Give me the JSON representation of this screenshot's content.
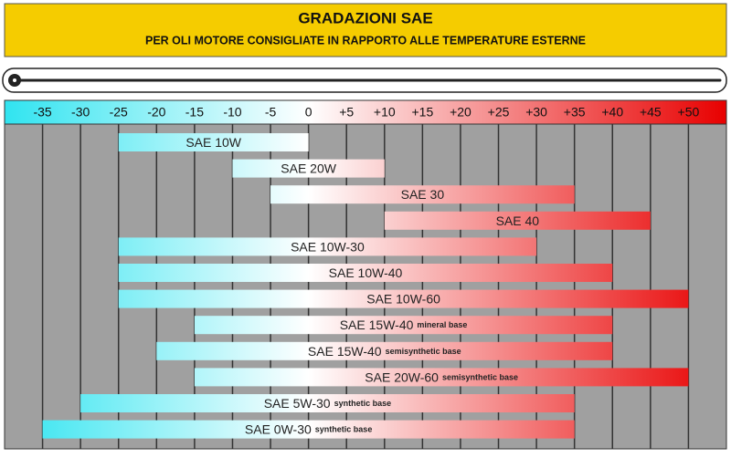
{
  "chart_data": {
    "type": "range_bar",
    "title": "GRADAZIONI SAE",
    "subtitle": "PER OLI MOTORE CONSIGLIATE IN RAPPORTO ALLE TEMPERATURE ESTERNE",
    "xlim": [
      -40,
      55
    ],
    "xticks": [
      -35,
      -30,
      -25,
      -20,
      -15,
      -10,
      -5,
      0,
      {
        "value": 5,
        "label": "+5"
      },
      {
        "value": 10,
        "label": "+10"
      },
      {
        "value": 15,
        "label": "+15"
      },
      {
        "value": 20,
        "label": "+20"
      },
      {
        "value": 25,
        "label": "+25"
      },
      {
        "value": 30,
        "label": "+30"
      },
      {
        "value": 35,
        "label": "+35"
      },
      {
        "value": 40,
        "label": "+40"
      },
      {
        "value": 45,
        "label": "+45"
      },
      {
        "value": 50,
        "label": "+50"
      }
    ],
    "grid": true,
    "colors": {
      "cold": "#30e4f0",
      "neutral": "#ffffff",
      "hot": "#e80000"
    },
    "bars": [
      {
        "label": "SAE 10W",
        "low": -25,
        "high": 0
      },
      {
        "label": "SAE 20W",
        "low": -10,
        "high": 10
      },
      {
        "label": "SAE 30",
        "low": -5,
        "high": 35
      },
      {
        "label": "SAE 40",
        "low": 10,
        "high": 45
      },
      {
        "label": "SAE 10W-30",
        "low": -25,
        "high": 30
      },
      {
        "label": "SAE 10W-40",
        "low": -25,
        "high": 40
      },
      {
        "label": "SAE 10W-60",
        "low": -25,
        "high": 50
      },
      {
        "label": "SAE 15W-40",
        "note": "mineral base",
        "low": -15,
        "high": 40
      },
      {
        "label": "SAE 15W-40",
        "note": "semisynthetic base",
        "low": -20,
        "high": 40
      },
      {
        "label": "SAE 20W-60",
        "note": "semisynthetic base",
        "low": -15,
        "high": 50
      },
      {
        "label": "SAE 5W-30",
        "note": "synthetic base",
        "low": -30,
        "high": 35
      },
      {
        "label": "SAE 0W-30",
        "note": "synthetic base",
        "low": -35,
        "high": 35
      }
    ]
  }
}
